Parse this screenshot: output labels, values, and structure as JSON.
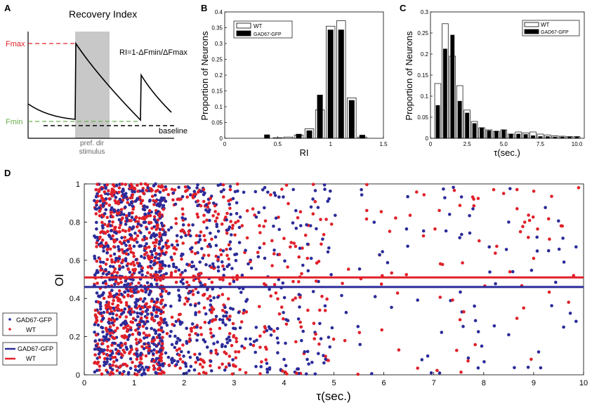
{
  "panels": {
    "A": {
      "letter": "A",
      "title": "Recovery Index",
      "fmax_label": "Fmax",
      "fmin_label": "Fmin",
      "baseline_label": "baseline",
      "formula": "RI=1-ΔFmin/ΔFmax",
      "stim_line1": "pref. dir",
      "stim_line2": "stimulus",
      "colors": {
        "fmax": "#e0202a",
        "fmin": "#6ab04c",
        "stim": "#c8c8c8"
      }
    },
    "B": {
      "letter": "B"
    },
    "C": {
      "letter": "C"
    },
    "D": {
      "letter": "D"
    }
  },
  "chart_data": [
    {
      "id": "B",
      "type": "bar",
      "title": "",
      "xlabel": "RI",
      "ylabel": "Proportion of Neurons",
      "xlim": [
        0,
        1.5
      ],
      "ylim": [
        0,
        0.4
      ],
      "xticks": [
        0,
        0.5,
        1,
        1.5
      ],
      "xtick_labels": [
        "0",
        "0.5",
        "1",
        "1.5"
      ],
      "yticks": [
        0,
        0.05,
        0.1,
        0.15,
        0.2,
        0.25,
        0.3,
        0.35,
        0.4
      ],
      "ytick_labels": [
        "0",
        "0.05",
        "0.1",
        "0.15",
        "0.2",
        "0.25",
        "0.3",
        "0.35",
        "0.4"
      ],
      "bin_width": 0.1,
      "bin_centers": [
        0.4,
        0.5,
        0.6,
        0.7,
        0.8,
        0.9,
        1.0,
        1.1,
        1.2,
        1.3
      ],
      "series": [
        {
          "name": "WT",
          "color": "#ffffff",
          "values": [
            0.0,
            0.002,
            0.004,
            0.01,
            0.03,
            0.09,
            0.355,
            0.372,
            0.128,
            0.004
          ]
        },
        {
          "name": "GAD67-GFP",
          "color": "#000000",
          "values": [
            0.011,
            0.0,
            0.0,
            0.013,
            0.024,
            0.137,
            0.343,
            0.343,
            0.12,
            0.01
          ]
        }
      ],
      "legend": [
        "WT",
        "GAD67-GFP"
      ],
      "legend_position": "top-left"
    },
    {
      "id": "C",
      "type": "bar",
      "title": "",
      "xlabel": "τ(sec.)",
      "ylabel": "Proportion of Neurons",
      "xlim": [
        0,
        10.5
      ],
      "ylim": [
        0,
        0.3
      ],
      "xticks": [
        0,
        2.5,
        5,
        7.5,
        10
      ],
      "xtick_labels": [
        "0",
        "2.5",
        "5.0",
        "7.5",
        "10.0"
      ],
      "yticks": [
        0,
        0.05,
        0.1,
        0.15,
        0.2,
        0.25,
        0.3
      ],
      "ytick_labels": [
        "0",
        "0.05",
        "0.1",
        "0.15",
        "0.2",
        "0.25",
        "0.3"
      ],
      "bin_width": 0.5,
      "bin_centers": [
        0.5,
        1.0,
        1.5,
        2.0,
        2.5,
        3.0,
        3.5,
        4.0,
        4.5,
        5.0,
        5.5,
        6.0,
        6.5,
        7.0,
        7.5,
        8.0,
        8.5,
        9.0,
        9.5,
        10.0
      ],
      "series": [
        {
          "name": "WT",
          "color": "#ffffff",
          "values": [
            0.13,
            0.272,
            0.195,
            0.125,
            0.067,
            0.04,
            0.025,
            0.02,
            0.016,
            0.02,
            0.01,
            0.015,
            0.013,
            0.015,
            0.01,
            0.008,
            0.006,
            0.005,
            0.004,
            0.004
          ]
        },
        {
          "name": "GAD67-GFP",
          "color": "#000000",
          "values": [
            0.078,
            0.212,
            0.245,
            0.088,
            0.06,
            0.035,
            0.025,
            0.018,
            0.017,
            0.02,
            0.01,
            0.01,
            0.009,
            0.006,
            0.004,
            0.004,
            0.003,
            0.003,
            0.003,
            0.003
          ]
        }
      ],
      "legend": [
        "WT",
        "GAD67-GFP"
      ],
      "legend_position": "top-right"
    },
    {
      "id": "D",
      "type": "scatter",
      "title": "",
      "xlabel": "τ(sec.)",
      "ylabel": "OI",
      "xlim": [
        0,
        10
      ],
      "ylim": [
        0,
        1
      ],
      "xticks": [
        0,
        1,
        2,
        3,
        4,
        5,
        6,
        7,
        8,
        9,
        10
      ],
      "xtick_labels": [
        "0",
        "1",
        "2",
        "3",
        "4",
        "5",
        "6",
        "7",
        "8",
        "9",
        "10"
      ],
      "yticks": [
        0,
        0.2,
        0.4,
        0.6,
        0.8,
        1
      ],
      "ytick_labels": [
        "0",
        "0.2",
        "0.4",
        "0.6",
        "0.8",
        "1"
      ],
      "series": [
        {
          "name": "GAD67-GFP",
          "color": "#2b2b9a",
          "n_points": 1050,
          "x_distribution": "right-skewed, mode near 1 s",
          "y_range": [
            0,
            1
          ],
          "mean_line": 0.46
        },
        {
          "name": "WT",
          "color": "#e0202a",
          "n_points": 1050,
          "x_distribution": "right-skewed, mode near 1 s",
          "y_range": [
            0,
            1
          ],
          "mean_line": 0.51
        }
      ],
      "outliers": [
        {
          "series": "WT",
          "x": 9.9,
          "y": 0.98
        },
        {
          "series": "WT",
          "x": 9.8,
          "y": 0.52
        },
        {
          "series": "WT",
          "x": 9.7,
          "y": 0.38
        },
        {
          "series": "GAD67-GFP",
          "x": 9.85,
          "y": 0.67
        },
        {
          "series": "GAD67-GFP",
          "x": 9.85,
          "y": 0.28
        },
        {
          "series": "GAD67-GFP",
          "x": 9.6,
          "y": 0.25
        },
        {
          "series": "GAD67-GFP",
          "x": 9.1,
          "y": 0.12
        },
        {
          "series": "WT",
          "x": 9.55,
          "y": 0.78
        },
        {
          "series": "WT",
          "x": 9.0,
          "y": 0.61
        },
        {
          "series": "WT",
          "x": 8.2,
          "y": 0.97
        },
        {
          "series": "WT",
          "x": 8.4,
          "y": 0.95
        },
        {
          "series": "WT",
          "x": 7.8,
          "y": 0.92
        },
        {
          "series": "GAD67-GFP",
          "x": 9.3,
          "y": 0.65
        },
        {
          "series": "GAD67-GFP",
          "x": 8.5,
          "y": 0.8
        },
        {
          "series": "WT",
          "x": 8.8,
          "y": 0.35
        },
        {
          "series": "GAD67-GFP",
          "x": 8.5,
          "y": 0.21
        },
        {
          "series": "WT",
          "x": 7.6,
          "y": 0.33
        },
        {
          "series": "GAD67-GFP",
          "x": 6.95,
          "y": 0.01
        },
        {
          "series": "GAD67-GFP",
          "x": 5.55,
          "y": 0.97
        },
        {
          "series": "WT",
          "x": 6.3,
          "y": 0.13
        }
      ],
      "legend_markers": [
        "GAD67-GFP",
        "WT"
      ],
      "legend_lines": [
        "GAD67-GFP",
        "WT"
      ],
      "legend_position": "outside-left"
    }
  ]
}
